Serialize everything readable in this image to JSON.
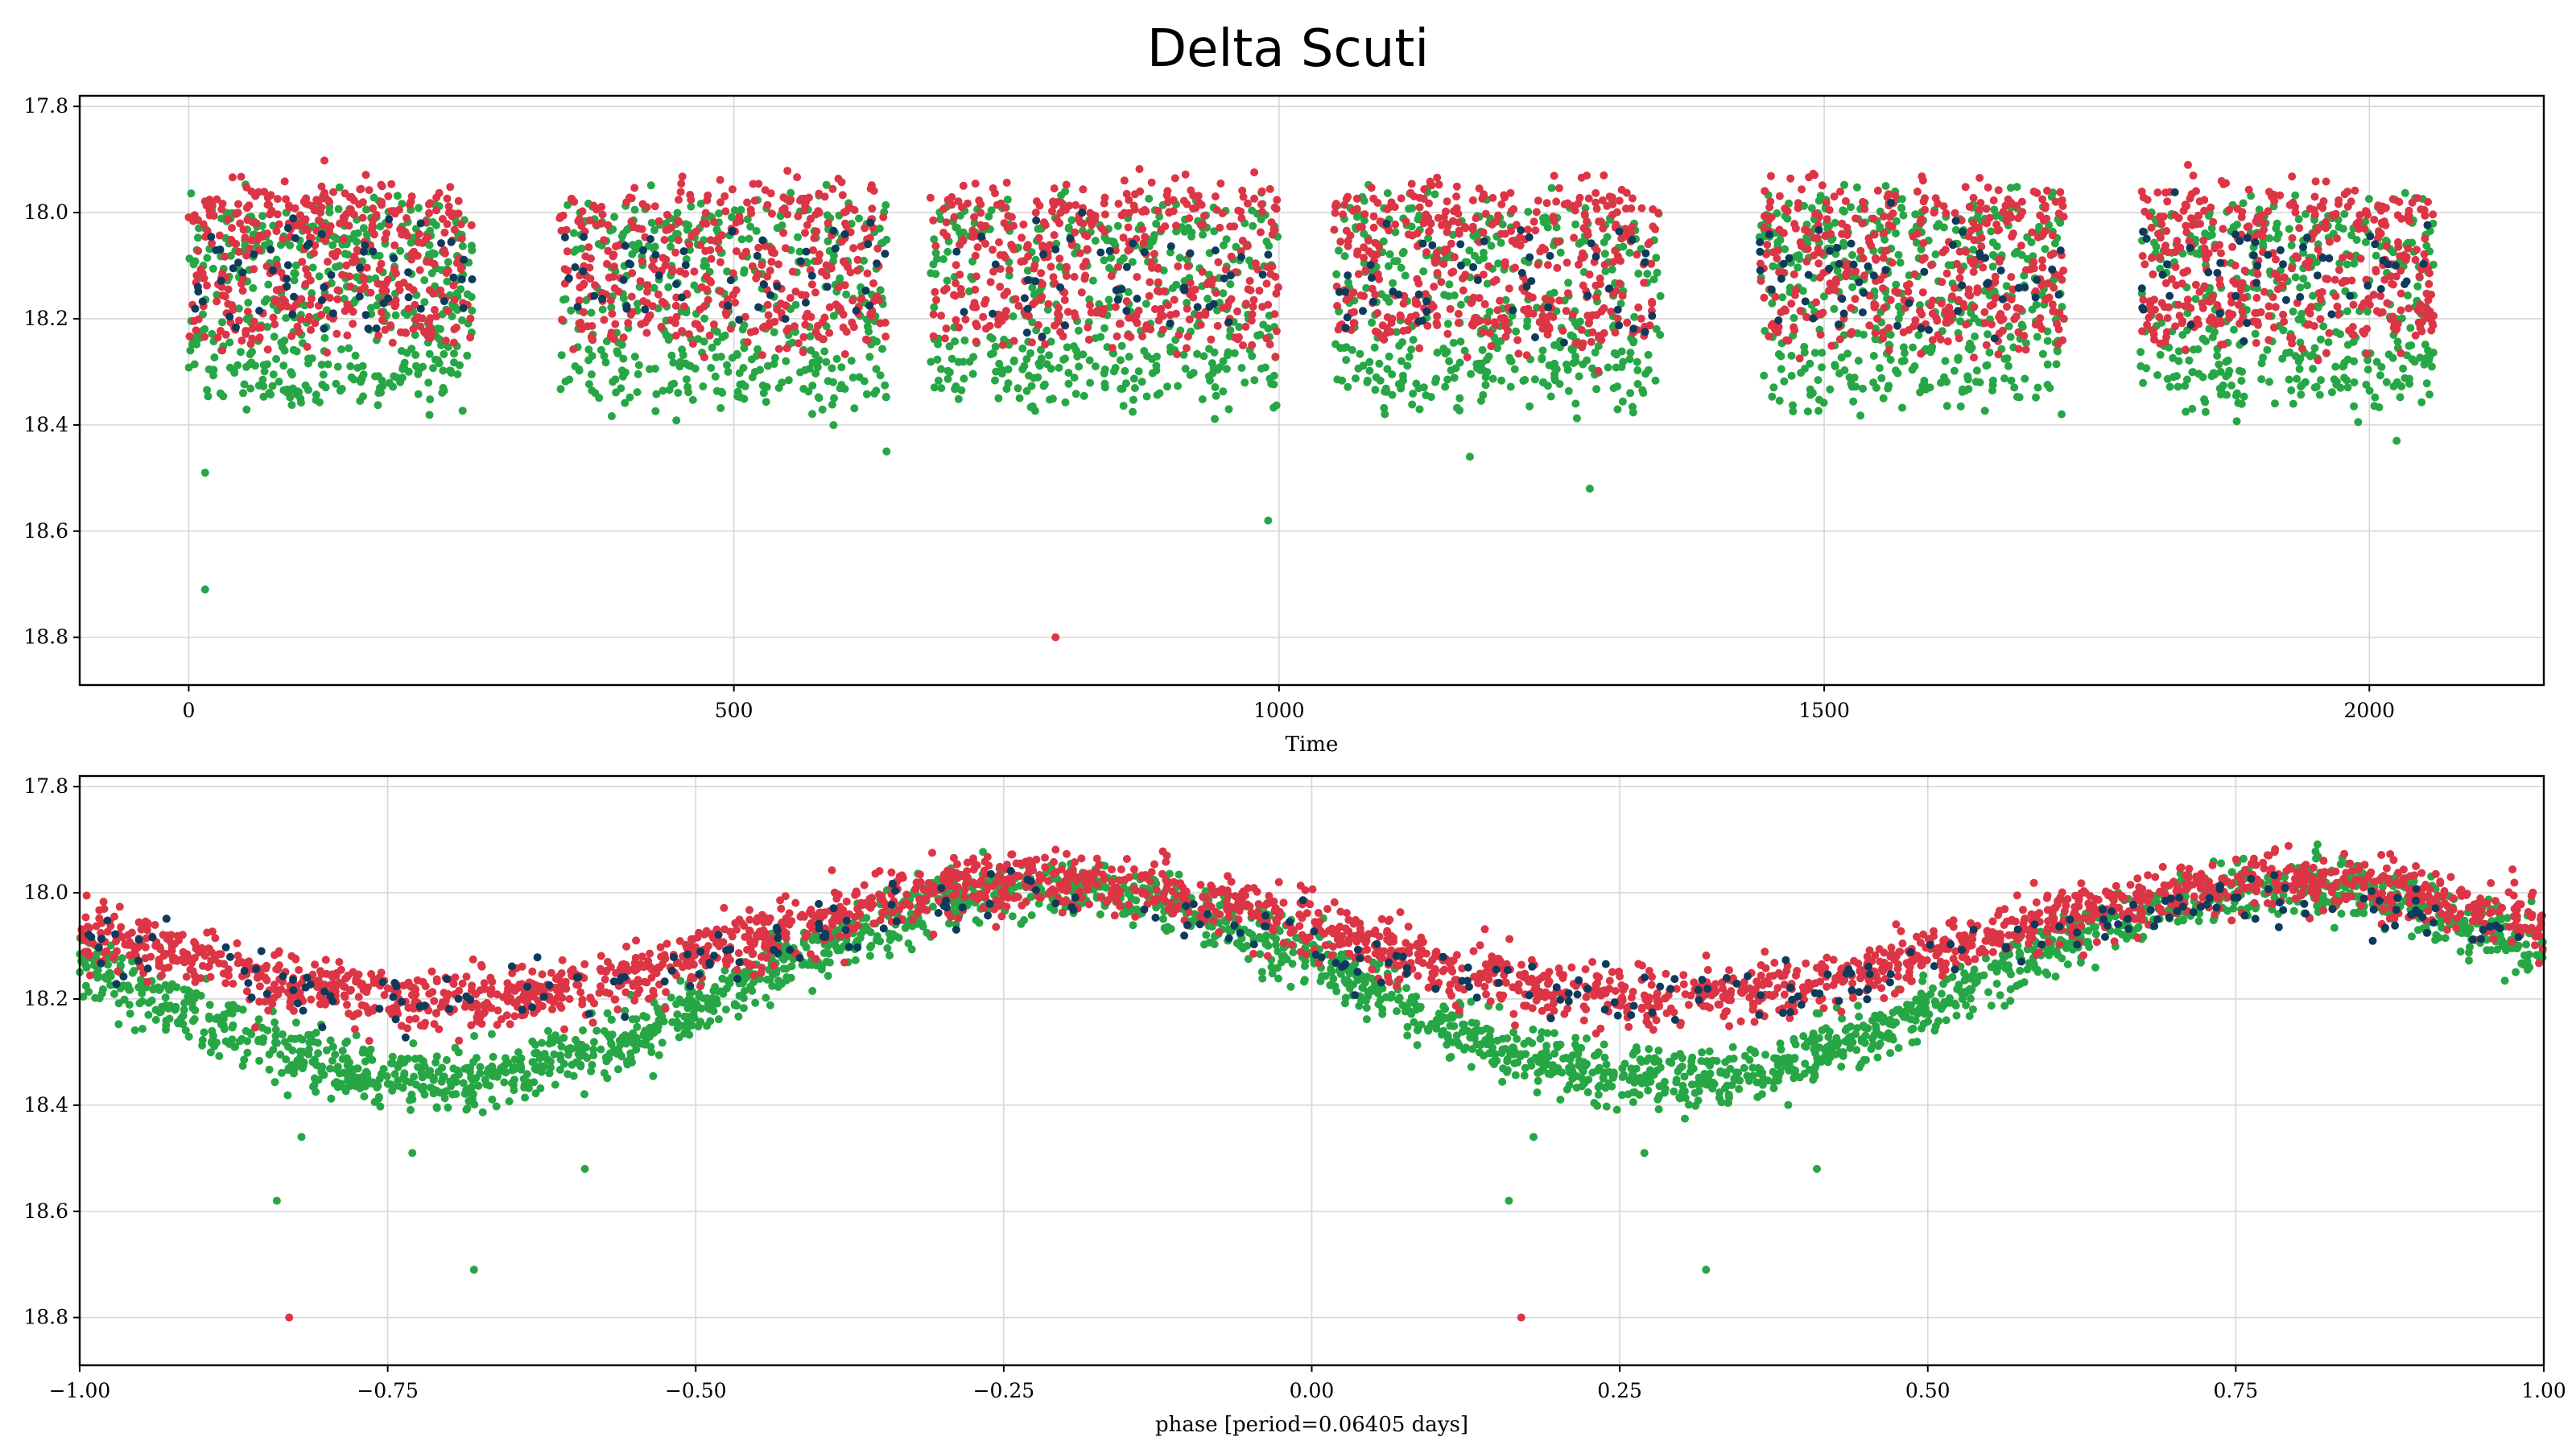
{
  "figure": {
    "title": "Delta Scuti"
  },
  "colors": {
    "series_a": "#0e3b5c",
    "series_b": "#27a645",
    "series_c": "#dc3545"
  },
  "chart_data": [
    {
      "type": "scatter",
      "title": "Delta Scuti",
      "xlabel": "Time",
      "ylabel": "",
      "xlim": [
        -100,
        2160
      ],
      "ylim": [
        18.89,
        17.78
      ],
      "y_inverted": true,
      "grid": true,
      "legend": "none",
      "xticks": [
        0,
        500,
        1000,
        1500,
        2000
      ],
      "xtick_labels": [
        "0",
        "500",
        "1000",
        "1500",
        "2000"
      ],
      "yticks": [
        17.8,
        18.0,
        18.2,
        18.4,
        18.6,
        18.8
      ],
      "ytick_labels": [
        "17.8",
        "18.0",
        "18.2",
        "18.4",
        "18.6",
        "18.8"
      ],
      "observing_seasons": [
        [
          0,
          260
        ],
        [
          340,
          640
        ],
        [
          680,
          1000
        ],
        [
          1050,
          1350
        ],
        [
          1440,
          1720
        ],
        [
          1790,
          2060
        ]
      ],
      "series": [
        {
          "color_key": "series_b",
          "mean_mag": 18.17,
          "amplitude": 0.16,
          "count": 2600
        },
        {
          "color_key": "series_c",
          "mean_mag": 18.1,
          "amplitude": 0.12,
          "count": 2400
        },
        {
          "color_key": "series_a",
          "mean_mag": 18.12,
          "amplitude": 0.07,
          "count": 300
        }
      ],
      "outliers": [
        {
          "x": 15,
          "y": 18.49,
          "color_key": "series_b"
        },
        {
          "x": 15,
          "y": 18.71,
          "color_key": "series_b"
        },
        {
          "x": 795,
          "y": 18.8,
          "color_key": "series_c"
        },
        {
          "x": 990,
          "y": 18.58,
          "color_key": "series_b"
        },
        {
          "x": 1285,
          "y": 18.52,
          "color_key": "series_b"
        },
        {
          "x": 1175,
          "y": 18.46,
          "color_key": "series_b"
        },
        {
          "x": 640,
          "y": 18.45,
          "color_key": "series_b"
        },
        {
          "x": 2025,
          "y": 18.43,
          "color_key": "series_b"
        }
      ]
    },
    {
      "type": "scatter",
      "title": "",
      "xlabel": "phase [period=0.06405 days]",
      "ylabel": "",
      "xlim": [
        -1.0,
        1.0
      ],
      "ylim": [
        18.89,
        17.78
      ],
      "y_inverted": true,
      "grid": true,
      "legend": "none",
      "period_days": 0.06405,
      "xticks": [
        -1.0,
        -0.75,
        -0.5,
        -0.25,
        0.0,
        0.25,
        0.5,
        0.75,
        1.0
      ],
      "xtick_labels": [
        "−1.00",
        "−0.75",
        "−0.50",
        "−0.25",
        "0.00",
        "0.25",
        "0.50",
        "0.75",
        "1.00"
      ],
      "yticks": [
        17.8,
        18.0,
        18.2,
        18.4,
        18.6,
        18.8
      ],
      "ytick_labels": [
        "17.8",
        "18.0",
        "18.2",
        "18.4",
        "18.6",
        "18.8"
      ],
      "series": [
        {
          "color_key": "series_b",
          "mean_mag": 18.17,
          "amplitude": 0.18,
          "max_phase": -0.21,
          "count": 2600
        },
        {
          "color_key": "series_c",
          "mean_mag": 18.09,
          "amplitude": 0.11,
          "max_phase": -0.21,
          "count": 2400
        },
        {
          "color_key": "series_a",
          "mean_mag": 18.11,
          "amplitude": 0.09,
          "max_phase": -0.21,
          "count": 300
        }
      ],
      "outliers": [
        {
          "x": -0.84,
          "y": 18.58,
          "color_key": "series_b"
        },
        {
          "x": 0.16,
          "y": 18.58,
          "color_key": "series_b"
        },
        {
          "x": -0.83,
          "y": 18.8,
          "color_key": "series_c"
        },
        {
          "x": 0.17,
          "y": 18.8,
          "color_key": "series_c"
        },
        {
          "x": -0.68,
          "y": 18.71,
          "color_key": "series_b"
        },
        {
          "x": 0.32,
          "y": 18.71,
          "color_key": "series_b"
        },
        {
          "x": -0.59,
          "y": 18.52,
          "color_key": "series_b"
        },
        {
          "x": 0.41,
          "y": 18.52,
          "color_key": "series_b"
        },
        {
          "x": -0.73,
          "y": 18.49,
          "color_key": "series_b"
        },
        {
          "x": 0.27,
          "y": 18.49,
          "color_key": "series_b"
        },
        {
          "x": -0.82,
          "y": 18.46,
          "color_key": "series_b"
        },
        {
          "x": 0.18,
          "y": 18.46,
          "color_key": "series_b"
        }
      ]
    }
  ]
}
